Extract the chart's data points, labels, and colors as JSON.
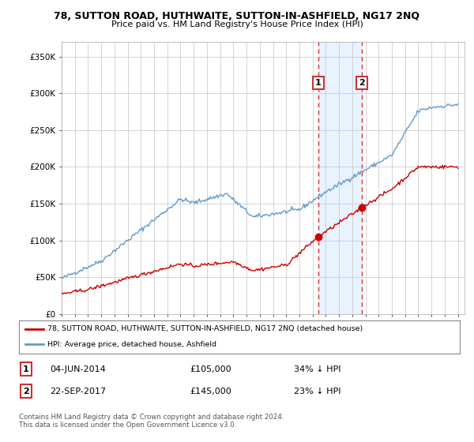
{
  "title": "78, SUTTON ROAD, HUTHWAITE, SUTTON-IN-ASHFIELD, NG17 2NQ",
  "subtitle": "Price paid vs. HM Land Registry's House Price Index (HPI)",
  "ylim": [
    0,
    370000
  ],
  "yticks": [
    0,
    50000,
    100000,
    150000,
    200000,
    250000,
    300000,
    350000
  ],
  "ytick_labels": [
    "£0",
    "£50K",
    "£100K",
    "£150K",
    "£200K",
    "£250K",
    "£300K",
    "£350K"
  ],
  "x_start_year": 1995,
  "x_end_year": 2025,
  "hpi_color": "#6699cc",
  "price_color": "#cc0000",
  "sale1_date": "04-JUN-2014",
  "sale1_price": 105000,
  "sale1_label": "1",
  "sale1_year": 2014.43,
  "sale2_date": "22-SEP-2017",
  "sale2_price": 145000,
  "sale2_label": "2",
  "sale2_year": 2017.73,
  "legend_line1": "78, SUTTON ROAD, HUTHWAITE, SUTTON-IN-ASHFIELD, NG17 2NQ (detached house)",
  "legend_line2": "HPI: Average price, detached house, Ashfield",
  "footnote": "Contains HM Land Registry data © Crown copyright and database right 2024.\nThis data is licensed under the Open Government Licence v3.0.",
  "background_color": "#ffffff",
  "grid_color": "#cccccc",
  "highlight_fill": "#ddeeff"
}
